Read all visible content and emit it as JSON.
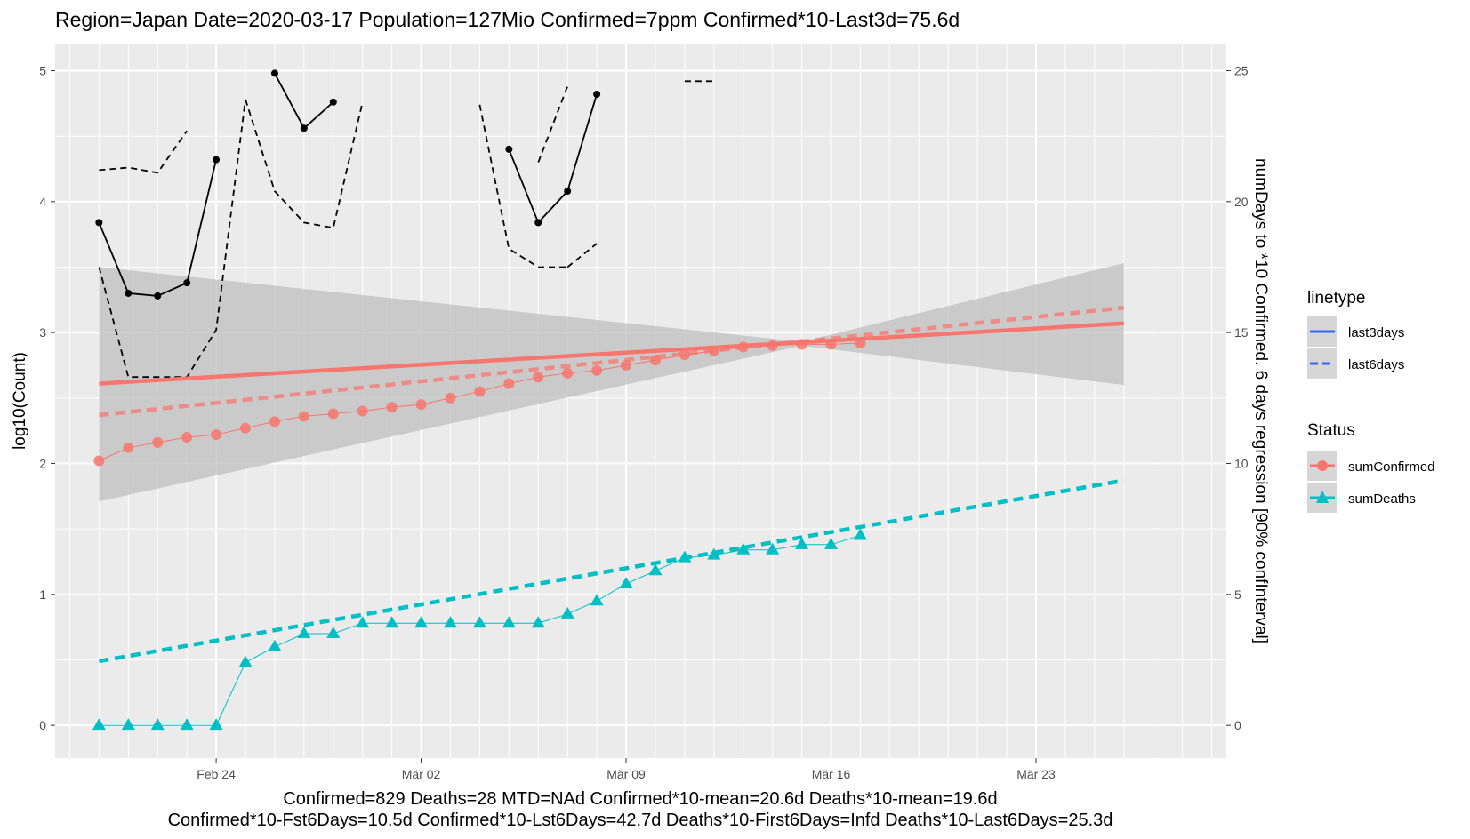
{
  "chart_data": {
    "type": "line",
    "title": "Region=Japan Date=2020-03-17  Population=127Mio Confirmed=7ppm  Confirmed*10-Last3d=75.6d",
    "caption_line1": "Confirmed=829 Deaths=28  MTD=NAd   Confirmed*10-mean=20.6d  Deaths*10-mean=19.6d",
    "caption_line2": "Confirmed*10-Fst6Days=10.5d  Confirmed*10-Lst6Days=42.7d    Deaths*10-First6Days=Infd  Deaths*10-Last6Days=25.3d",
    "xlabel": "",
    "ylabel": "log10(Count)",
    "y2label": "numDays to *10 Confirmed. 6 days regression [90% confInterval]",
    "x_tick_labels": [
      "Feb 24",
      "Mär 02",
      "Mär 09",
      "Mär 16",
      "Mär 23"
    ],
    "x_tick_days": [
      4,
      11,
      18,
      25,
      32
    ],
    "xlim_days": [
      -1.5,
      38.5
    ],
    "ylim": [
      -0.25,
      5.2
    ],
    "y_ticks": [
      0,
      1,
      2,
      3,
      4,
      5
    ],
    "y2_ticks": [
      0,
      5,
      10,
      15,
      20,
      25
    ],
    "y2_scale": 5,
    "grid": true,
    "legend_position": "right",
    "legends": {
      "linetype": {
        "title": "linetype",
        "items": [
          {
            "label": "last3days",
            "style": "solid",
            "color": "#3366FF"
          },
          {
            "label": "last6days",
            "style": "dashed",
            "color": "#3366FF"
          }
        ]
      },
      "status": {
        "title": "Status",
        "items": [
          {
            "label": "sumConfirmed",
            "color": "#F8766D",
            "marker": "circle"
          },
          {
            "label": "sumDeaths",
            "color": "#00BFC4",
            "marker": "triangle"
          }
        ]
      }
    },
    "series": [
      {
        "name": "sumConfirmed",
        "color": "#F8766D",
        "x": [
          0,
          1,
          2,
          3,
          4,
          5,
          6,
          7,
          8,
          9,
          10,
          11,
          12,
          13,
          14,
          15,
          16,
          17,
          18,
          19,
          20,
          21,
          22,
          23,
          24,
          25,
          26
        ],
        "values": [
          2.02,
          2.12,
          2.16,
          2.2,
          2.22,
          2.27,
          2.32,
          2.36,
          2.38,
          2.4,
          2.43,
          2.45,
          2.5,
          2.55,
          2.61,
          2.66,
          2.69,
          2.71,
          2.75,
          2.79,
          2.83,
          2.86,
          2.89,
          2.9,
          2.91,
          2.91,
          2.92
        ]
      },
      {
        "name": "sumDeaths",
        "color": "#00BFC4",
        "x": [
          0,
          1,
          2,
          3,
          4,
          5,
          6,
          7,
          8,
          9,
          10,
          11,
          12,
          13,
          14,
          15,
          16,
          17,
          18,
          19,
          20,
          21,
          22,
          23,
          24,
          25,
          26
        ],
        "values": [
          0,
          0,
          0,
          0,
          0,
          0.48,
          0.6,
          0.7,
          0.7,
          0.78,
          0.78,
          0.78,
          0.78,
          0.78,
          0.78,
          0.78,
          0.85,
          0.95,
          1.08,
          1.18,
          1.28,
          1.3,
          1.34,
          1.34,
          1.38,
          1.38,
          1.45
        ]
      }
    ],
    "regressions": [
      {
        "series": "sumConfirmed",
        "linetype": "last3days",
        "x": [
          0,
          35
        ],
        "values": [
          2.61,
          3.07
        ]
      },
      {
        "series": "sumConfirmed",
        "linetype": "last6days",
        "x": [
          0,
          35
        ],
        "values": [
          2.37,
          3.19
        ]
      },
      {
        "series": "sumDeaths",
        "linetype": "last6days",
        "x": [
          0,
          35
        ],
        "values": [
          0.49,
          1.87
        ]
      }
    ],
    "confidence_band": {
      "x": [
        0,
        24,
        35
      ],
      "upper": [
        3.5,
        2.93,
        3.53
      ],
      "lower": [
        1.71,
        2.9,
        2.6
      ]
    },
    "numdays_series": {
      "axis": "secondary",
      "color": "#000000",
      "solid_with_points": [
        {
          "x": [
            0,
            1,
            2,
            3,
            4
          ],
          "values": [
            19.2,
            16.5,
            16.4,
            16.9,
            21.6
          ]
        },
        {
          "x": [
            6,
            7,
            8
          ],
          "values": [
            24.9,
            22.8,
            23.8
          ]
        },
        {
          "x": [
            14,
            15,
            16,
            17
          ],
          "values": [
            22.0,
            19.2,
            20.4,
            24.1
          ]
        }
      ],
      "dashed_upper": [
        {
          "x": [
            0,
            1,
            2,
            3
          ],
          "values": [
            21.2,
            21.3,
            21.1,
            22.7
          ]
        },
        {
          "x": [
            5,
            6,
            7,
            8,
            9
          ],
          "values": [
            23.9,
            20.4,
            19.2,
            19.0,
            23.8
          ]
        },
        {
          "x": [
            13,
            14,
            15,
            16
          ],
          "values": [
            23.7,
            18.2,
            17.5,
            17.5
          ]
        },
        {
          "x": [
            15,
            16
          ],
          "values": [
            21.5,
            24.4
          ]
        },
        {
          "x": [
            20,
            21
          ],
          "values": [
            24.6,
            24.6
          ]
        }
      ],
      "dashed_lower": [
        {
          "x": [
            0,
            1,
            2,
            3,
            4,
            5
          ],
          "values": [
            17.5,
            13.3,
            13.3,
            13.3,
            15.1,
            23.9
          ]
        },
        {
          "x": [
            16,
            17
          ],
          "values": [
            17.5,
            18.4
          ]
        }
      ]
    }
  }
}
